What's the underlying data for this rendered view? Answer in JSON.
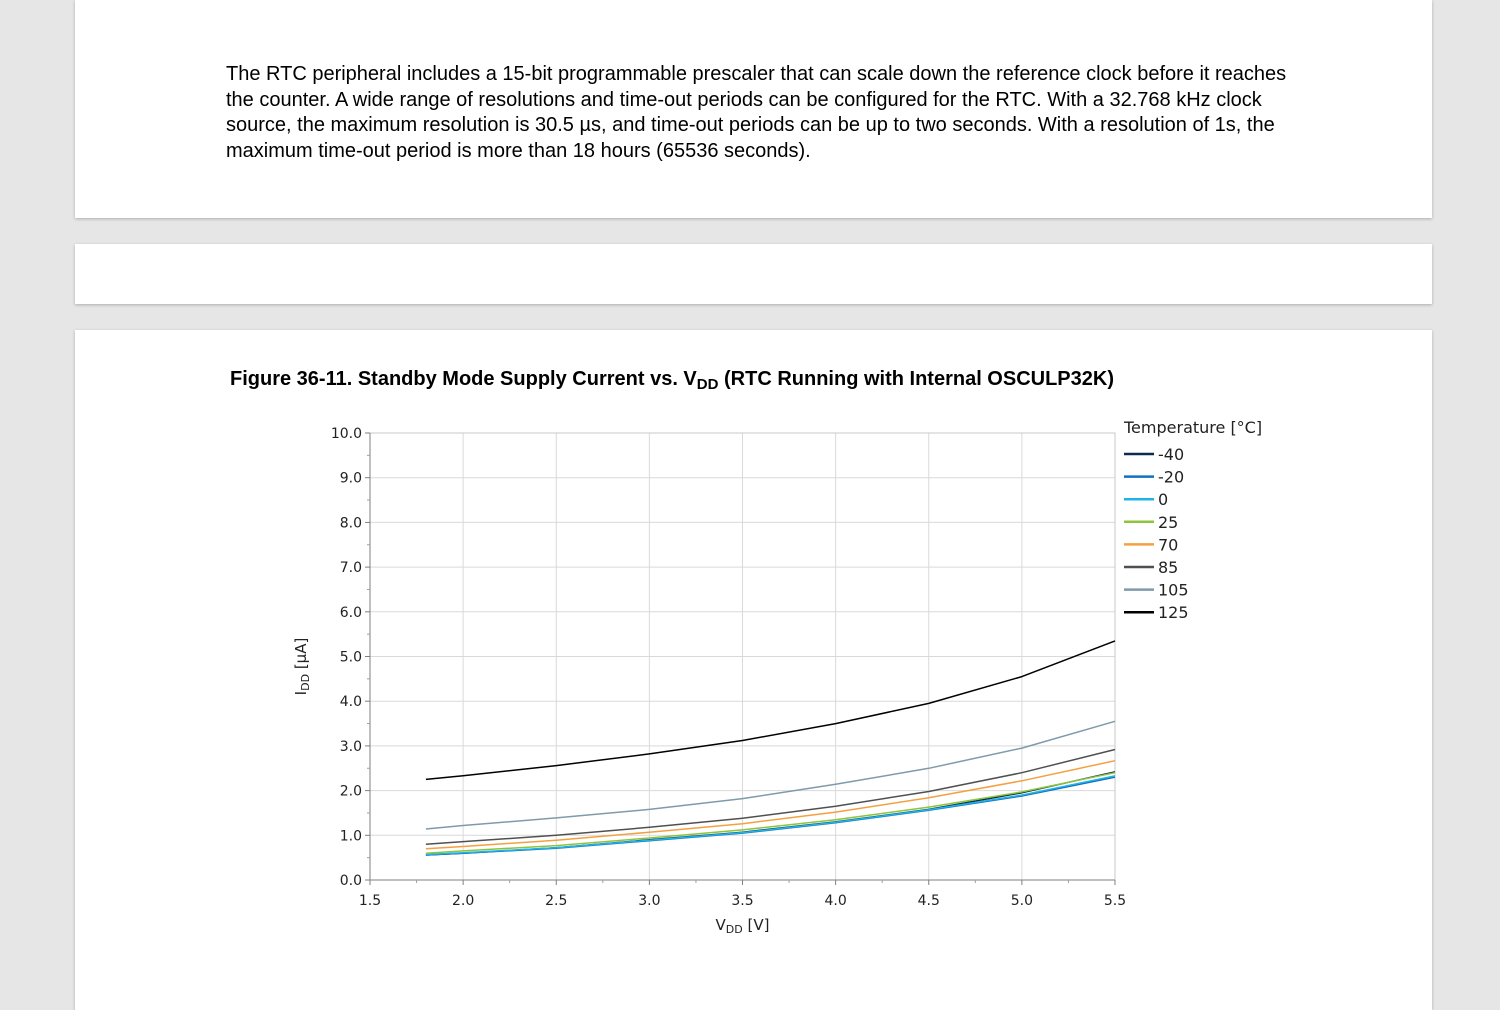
{
  "paragraph": "The RTC peripheral includes a 15-bit programmable prescaler that can scale down the reference clock before it reaches the counter. A wide range of resolutions and time-out periods can be configured for the RTC. With a 32.768 kHz clock source, the maximum resolution is 30.5 µs, and time-out periods can be up to two seconds. With a resolution of 1s, the maximum time-out period is more than 18 hours (65536 seconds).",
  "figure": {
    "title_prefix": "Figure 36-11.  Standby Mode Supply Current vs. V",
    "title_sub": "DD",
    "title_suffix": " (RTC Running with Internal OSCULP32K)"
  },
  "chart_data": {
    "type": "line",
    "title": "Figure 36-11.  Standby Mode Supply Current vs. VDD (RTC Running with Internal OSCULP32K)",
    "xlabel_main": "V",
    "xlabel_sub": "DD",
    "xlabel_unit": " [V]",
    "ylabel_main": "I",
    "ylabel_sub": "DD",
    "ylabel_unit": " [µA]",
    "xlim": [
      1.5,
      5.5
    ],
    "ylim": [
      0.0,
      10.0
    ],
    "xticks": [
      "1.5",
      "2.0",
      "2.5",
      "3.0",
      "3.5",
      "4.0",
      "4.5",
      "5.0",
      "5.5"
    ],
    "yticks": [
      "0.0",
      "1.0",
      "2.0",
      "3.0",
      "4.0",
      "5.0",
      "6.0",
      "7.0",
      "8.0",
      "9.0",
      "10.0"
    ],
    "grid": true,
    "legend_title": "Temperature [°C]",
    "legend_placement": "right",
    "x": [
      1.8,
      2.0,
      2.5,
      3.0,
      3.5,
      4.0,
      4.5,
      5.0,
      5.5
    ],
    "series": [
      {
        "name": "-40",
        "color": "#0d2b4e",
        "values": [
          0.56,
          0.6,
          0.72,
          0.9,
          1.07,
          1.3,
          1.58,
          1.95,
          2.42
        ]
      },
      {
        "name": "-20",
        "color": "#1270c0",
        "values": [
          0.56,
          0.6,
          0.71,
          0.88,
          1.05,
          1.28,
          1.56,
          1.88,
          2.3
        ]
      },
      {
        "name": "0",
        "color": "#1eb4e6",
        "values": [
          0.57,
          0.61,
          0.72,
          0.89,
          1.06,
          1.29,
          1.57,
          1.9,
          2.33
        ]
      },
      {
        "name": "25",
        "color": "#8cc43c",
        "values": [
          0.6,
          0.65,
          0.77,
          0.94,
          1.12,
          1.35,
          1.63,
          1.97,
          2.4
        ]
      },
      {
        "name": "70",
        "color": "#f5a040",
        "values": [
          0.7,
          0.75,
          0.89,
          1.07,
          1.26,
          1.52,
          1.84,
          2.22,
          2.67
        ]
      },
      {
        "name": "85",
        "color": "#505050",
        "values": [
          0.8,
          0.86,
          1.0,
          1.18,
          1.38,
          1.65,
          1.98,
          2.4,
          2.92
        ]
      },
      {
        "name": "105",
        "color": "#7f9aaa",
        "values": [
          1.14,
          1.22,
          1.39,
          1.58,
          1.82,
          2.14,
          2.5,
          2.95,
          3.55
        ]
      },
      {
        "name": "125",
        "color": "#000000",
        "values": [
          2.25,
          2.33,
          2.56,
          2.82,
          3.12,
          3.5,
          3.95,
          4.55,
          5.35
        ]
      }
    ]
  }
}
